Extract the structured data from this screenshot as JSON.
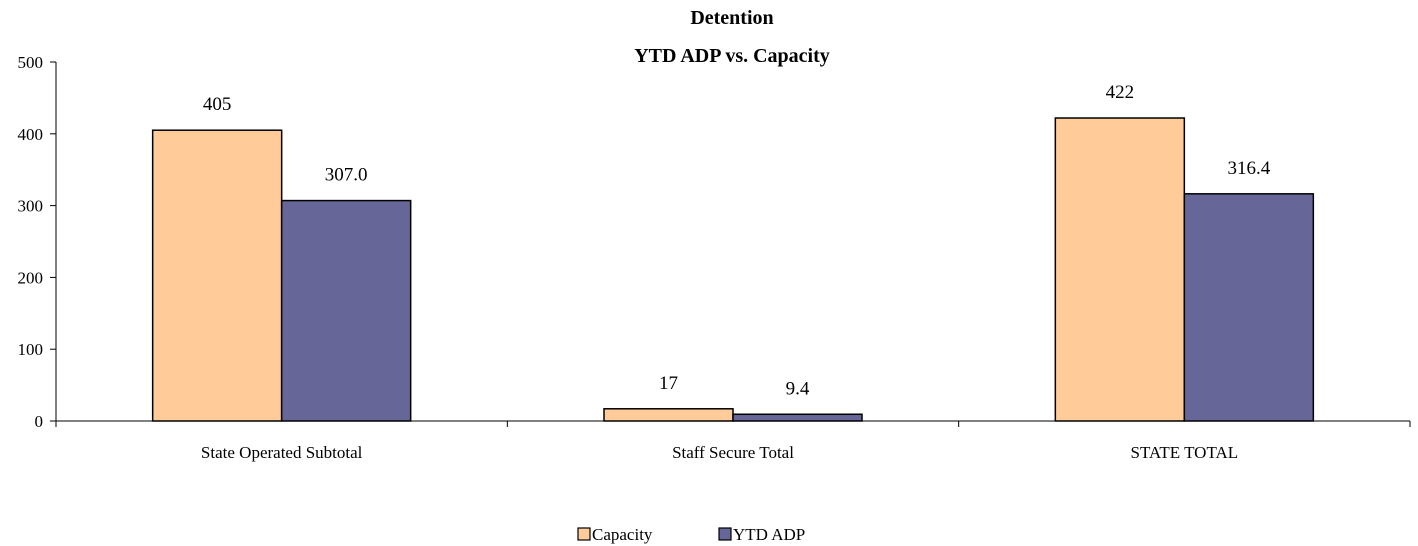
{
  "chart_data": {
    "type": "bar",
    "title": "Detention",
    "subtitle": "YTD ADP vs. Capacity",
    "categories": [
      "State Operated Subtotal",
      "Staff Secure Total",
      "STATE TOTAL"
    ],
    "series": [
      {
        "name": "Capacity",
        "values": [
          405,
          17,
          422
        ],
        "labels": [
          "405",
          "17",
          "422"
        ],
        "color": "#FFCC99"
      },
      {
        "name": "YTD ADP",
        "values": [
          307.0,
          9.4,
          316.4
        ],
        "labels": [
          "307.0",
          "9.4",
          "316.4"
        ],
        "color": "#666699"
      }
    ],
    "ylim": [
      0,
      500
    ],
    "yticks": [
      0,
      100,
      200,
      300,
      400,
      500
    ],
    "xlabel": "",
    "ylabel": "",
    "grid": false,
    "legend": "bottom-center"
  }
}
